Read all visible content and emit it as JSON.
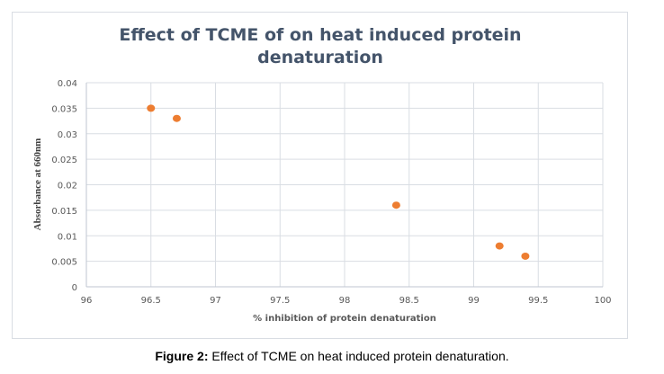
{
  "chart_data": {
    "type": "scatter",
    "title_lines": [
      "Effect of TCME of on heat induced protein",
      "denaturation"
    ],
    "xlabel": "% inhibition  of protein  denaturation",
    "ylabel": "Absorbance at 660nm",
    "xlim": [
      96,
      100
    ],
    "ylim": [
      0,
      0.04
    ],
    "x_ticks": [
      "96",
      "96.5",
      "97",
      "97.5",
      "98",
      "98.5",
      "99",
      "99.5",
      "100"
    ],
    "y_ticks": [
      "0",
      "0.005",
      "0.01",
      "0.015",
      "0.02",
      "0.025",
      "0.03",
      "0.035",
      "0.04"
    ],
    "grid": true,
    "series": [
      {
        "name": "Absorbance",
        "color": "#ED7D31",
        "points": [
          {
            "x": 96.5,
            "y": 0.035
          },
          {
            "x": 96.7,
            "y": 0.033
          },
          {
            "x": 98.4,
            "y": 0.016
          },
          {
            "x": 99.2,
            "y": 0.008
          },
          {
            "x": 99.4,
            "y": 0.006
          }
        ]
      }
    ]
  },
  "caption": {
    "label": "Figure 2:",
    "text": " Effect of TCME on heat induced protein denaturation."
  }
}
